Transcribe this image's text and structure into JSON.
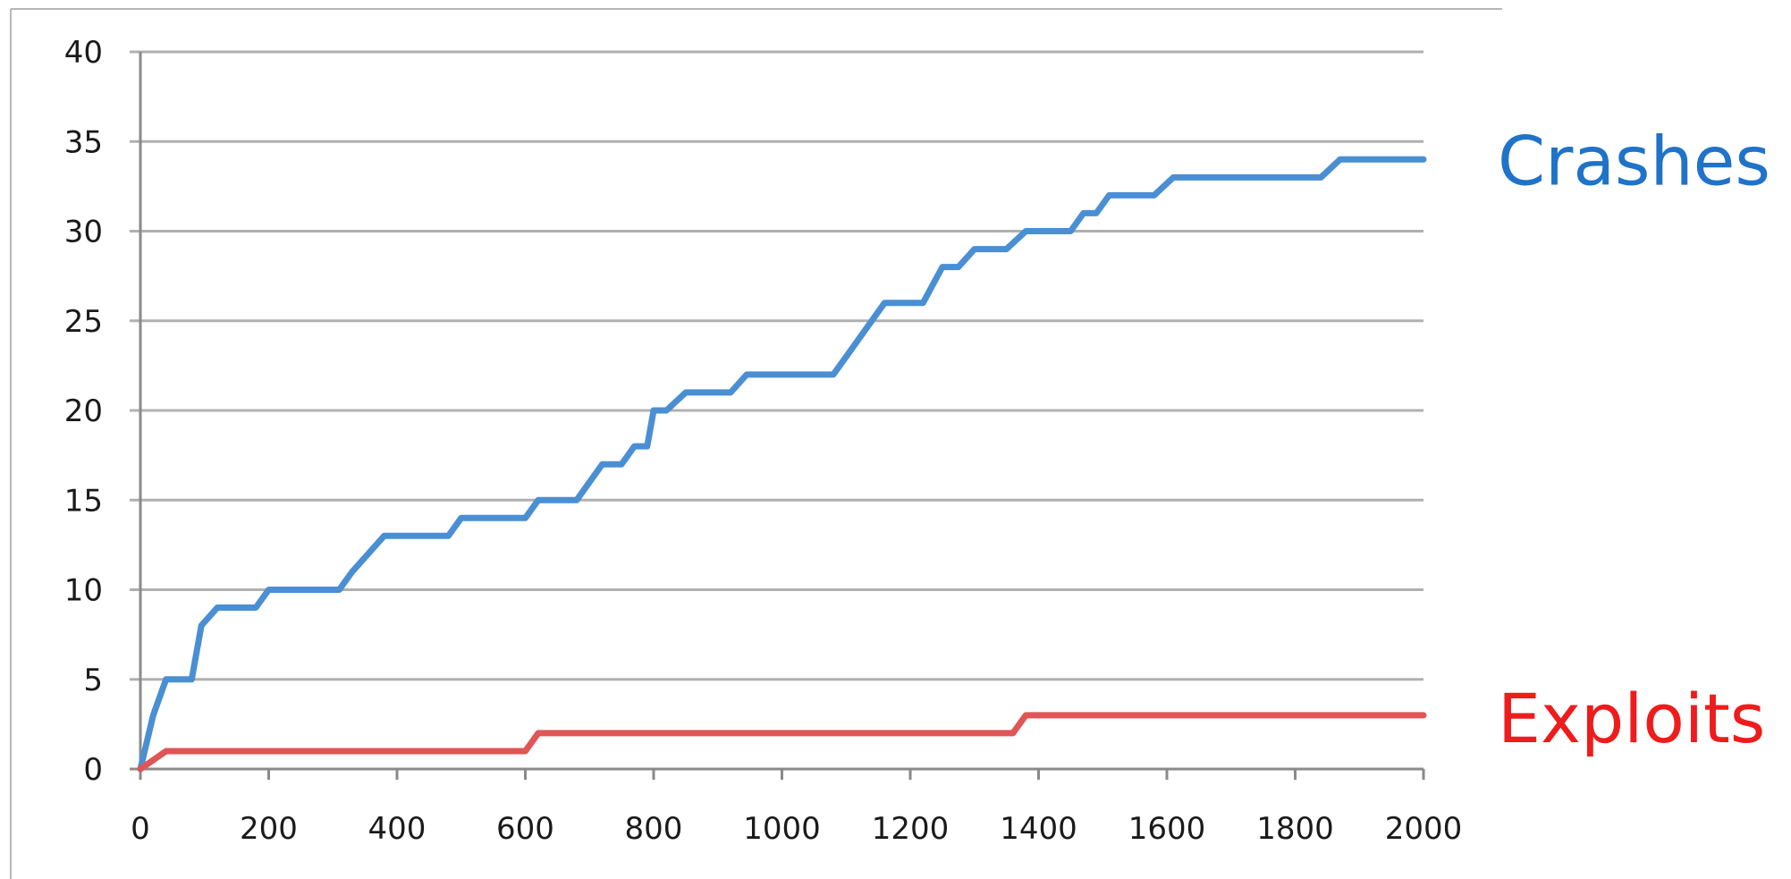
{
  "chart_data": {
    "type": "line",
    "title": "",
    "xlabel": "",
    "ylabel": "",
    "xlim": [
      0,
      2000
    ],
    "ylim": [
      0,
      40
    ],
    "x_ticks": [
      0,
      200,
      400,
      600,
      800,
      1000,
      1200,
      1400,
      1600,
      1800,
      2000
    ],
    "y_ticks": [
      0,
      5,
      10,
      15,
      20,
      25,
      30,
      35,
      40
    ],
    "grid": "horizontal",
    "series": [
      {
        "name": "Crashes",
        "color": "#4a8fd4",
        "label_color": "#1f73c8",
        "points": [
          [
            0,
            0
          ],
          [
            20,
            3
          ],
          [
            40,
            5
          ],
          [
            60,
            5
          ],
          [
            80,
            5
          ],
          [
            95,
            8
          ],
          [
            120,
            9
          ],
          [
            180,
            9
          ],
          [
            200,
            10
          ],
          [
            310,
            10
          ],
          [
            330,
            11
          ],
          [
            380,
            13
          ],
          [
            480,
            13
          ],
          [
            500,
            14
          ],
          [
            600,
            14
          ],
          [
            620,
            15
          ],
          [
            680,
            15
          ],
          [
            720,
            17
          ],
          [
            750,
            17
          ],
          [
            770,
            18
          ],
          [
            790,
            18
          ],
          [
            800,
            20
          ],
          [
            820,
            20
          ],
          [
            850,
            21
          ],
          [
            920,
            21
          ],
          [
            945,
            22
          ],
          [
            1080,
            22
          ],
          [
            1100,
            23
          ],
          [
            1160,
            26
          ],
          [
            1220,
            26
          ],
          [
            1250,
            28
          ],
          [
            1275,
            28
          ],
          [
            1300,
            29
          ],
          [
            1350,
            29
          ],
          [
            1380,
            30
          ],
          [
            1450,
            30
          ],
          [
            1470,
            31
          ],
          [
            1490,
            31
          ],
          [
            1510,
            32
          ],
          [
            1580,
            32
          ],
          [
            1610,
            33
          ],
          [
            1840,
            33
          ],
          [
            1870,
            34
          ],
          [
            2000,
            34
          ]
        ]
      },
      {
        "name": "Exploits",
        "color": "#e05555",
        "label_color": "#ee1c1c",
        "points": [
          [
            0,
            0
          ],
          [
            40,
            1
          ],
          [
            600,
            1
          ],
          [
            620,
            2
          ],
          [
            1360,
            2
          ],
          [
            1380,
            3
          ],
          [
            2000,
            3
          ]
        ]
      }
    ]
  }
}
